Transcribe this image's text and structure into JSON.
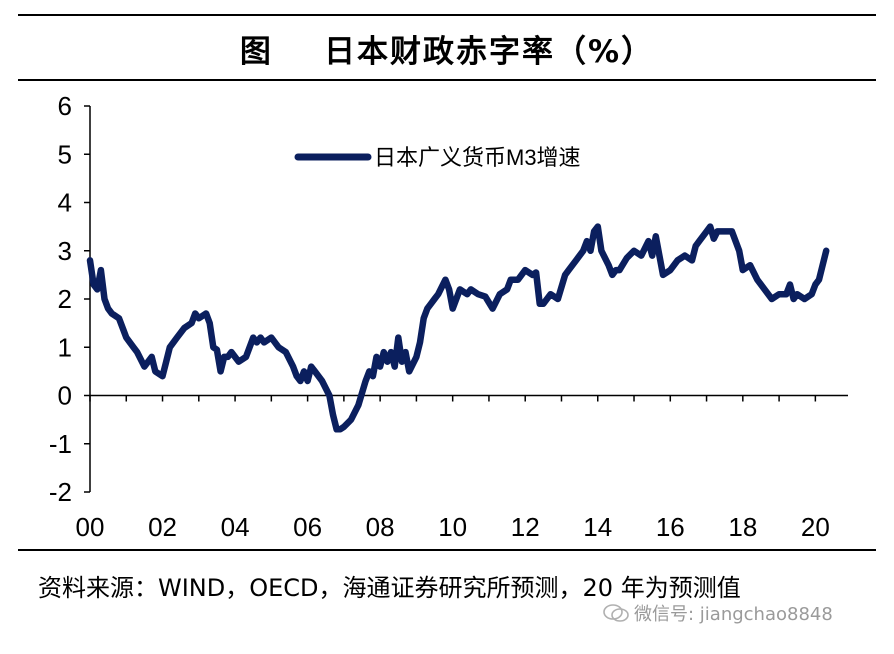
{
  "title": "图    日本财政赤字率（%）",
  "chart_data": {
    "type": "line",
    "title": "图    日本财政赤字率（%）",
    "xlabel": "",
    "ylabel": "",
    "ylim": [
      -2,
      6
    ],
    "xlim": [
      2000,
      2020.9
    ],
    "yticks": [
      6,
      5,
      4,
      3,
      2,
      1,
      0,
      -1,
      -2
    ],
    "xtick_labels": [
      "00",
      "02",
      "04",
      "06",
      "08",
      "10",
      "12",
      "14",
      "16",
      "18",
      "20"
    ],
    "legend_position": "top-center",
    "grid": false,
    "line_color": "#0b1f5e",
    "series": [
      {
        "name": "日本广义货币M3增速",
        "x": [
          2000.0,
          2000.1,
          2000.2,
          2000.3,
          2000.4,
          2000.5,
          2000.6,
          2000.8,
          2001.0,
          2001.2,
          2001.3,
          2001.5,
          2001.7,
          2001.8,
          2002.0,
          2002.1,
          2002.2,
          2002.3,
          2002.4,
          2002.6,
          2002.8,
          2002.9,
          2003.0,
          2003.2,
          2003.3,
          2003.4,
          2003.5,
          2003.6,
          2003.7,
          2003.8,
          2003.9,
          2004.1,
          2004.3,
          2004.5,
          2004.6,
          2004.7,
          2004.8,
          2005.0,
          2005.2,
          2005.4,
          2005.6,
          2005.7,
          2005.8,
          2005.9,
          2006.0,
          2006.1,
          2006.2,
          2006.4,
          2006.6,
          2006.7,
          2006.8,
          2006.9,
          2007.0,
          2007.2,
          2007.4,
          2007.6,
          2007.7,
          2007.8,
          2007.9,
          2008.0,
          2008.1,
          2008.2,
          2008.3,
          2008.4,
          2008.5,
          2008.6,
          2008.7,
          2008.8,
          2009.0,
          2009.1,
          2009.2,
          2009.3,
          2009.4,
          2009.5,
          2009.6,
          2009.8,
          2009.9,
          2010.0,
          2010.2,
          2010.4,
          2010.5,
          2010.7,
          2010.9,
          2011.1,
          2011.3,
          2011.5,
          2011.6,
          2011.8,
          2012.0,
          2012.2,
          2012.3,
          2012.4,
          2012.5,
          2012.7,
          2012.9,
          2013.1,
          2013.2,
          2013.4,
          2013.6,
          2013.7,
          2013.8,
          2013.9,
          2014.0,
          2014.1,
          2014.3,
          2014.4,
          2014.5,
          2014.6,
          2014.8,
          2015.0,
          2015.2,
          2015.4,
          2015.5,
          2015.6,
          2015.7,
          2015.8,
          2016.0,
          2016.2,
          2016.4,
          2016.6,
          2016.7,
          2016.8,
          2017.0,
          2017.1,
          2017.2,
          2017.3,
          2017.5,
          2017.7,
          2017.9,
          2018.0,
          2018.2,
          2018.4,
          2018.6,
          2018.8,
          2019.0,
          2019.2,
          2019.3,
          2019.4,
          2019.5,
          2019.7,
          2019.9,
          2020.0,
          2020.1,
          2020.3
        ],
        "values": [
          2.8,
          2.3,
          2.2,
          2.6,
          2.0,
          1.8,
          1.7,
          1.6,
          1.2,
          1.0,
          0.9,
          0.6,
          0.8,
          0.5,
          0.4,
          0.7,
          1.0,
          1.1,
          1.2,
          1.4,
          1.5,
          1.7,
          1.6,
          1.7,
          1.5,
          1.0,
          0.95,
          0.5,
          0.8,
          0.8,
          0.9,
          0.7,
          0.8,
          1.2,
          1.1,
          1.2,
          1.1,
          1.2,
          1.0,
          0.9,
          0.6,
          0.4,
          0.3,
          0.5,
          0.3,
          0.6,
          0.5,
          0.3,
          0.0,
          -0.4,
          -0.7,
          -0.7,
          -0.65,
          -0.5,
          -0.2,
          0.3,
          0.5,
          0.4,
          0.8,
          0.6,
          0.9,
          0.7,
          0.9,
          0.6,
          1.2,
          0.7,
          0.9,
          0.5,
          0.8,
          1.1,
          1.6,
          1.8,
          1.9,
          2.0,
          2.1,
          2.4,
          2.2,
          1.8,
          2.2,
          2.1,
          2.2,
          2.1,
          2.05,
          1.8,
          2.1,
          2.2,
          2.4,
          2.4,
          2.6,
          2.5,
          2.55,
          1.9,
          1.9,
          2.1,
          2.0,
          2.5,
          2.6,
          2.8,
          3.0,
          3.2,
          3.0,
          3.4,
          3.5,
          3.0,
          2.7,
          2.5,
          2.6,
          2.6,
          2.85,
          3.0,
          2.9,
          3.2,
          2.9,
          3.3,
          2.9,
          2.5,
          2.6,
          2.8,
          2.9,
          2.8,
          3.1,
          3.2,
          3.4,
          3.5,
          3.25,
          3.4,
          3.4,
          3.4,
          3.0,
          2.6,
          2.7,
          2.4,
          2.2,
          2.0,
          2.1,
          2.1,
          2.3,
          2.0,
          2.1,
          2.0,
          2.1,
          2.3,
          2.4,
          3.0
        ]
      }
    ]
  },
  "source": "资料来源：WIND，OECD，海通证券研究所预测，20 年为预测值",
  "watermark": "微信号: jiangchao8848"
}
